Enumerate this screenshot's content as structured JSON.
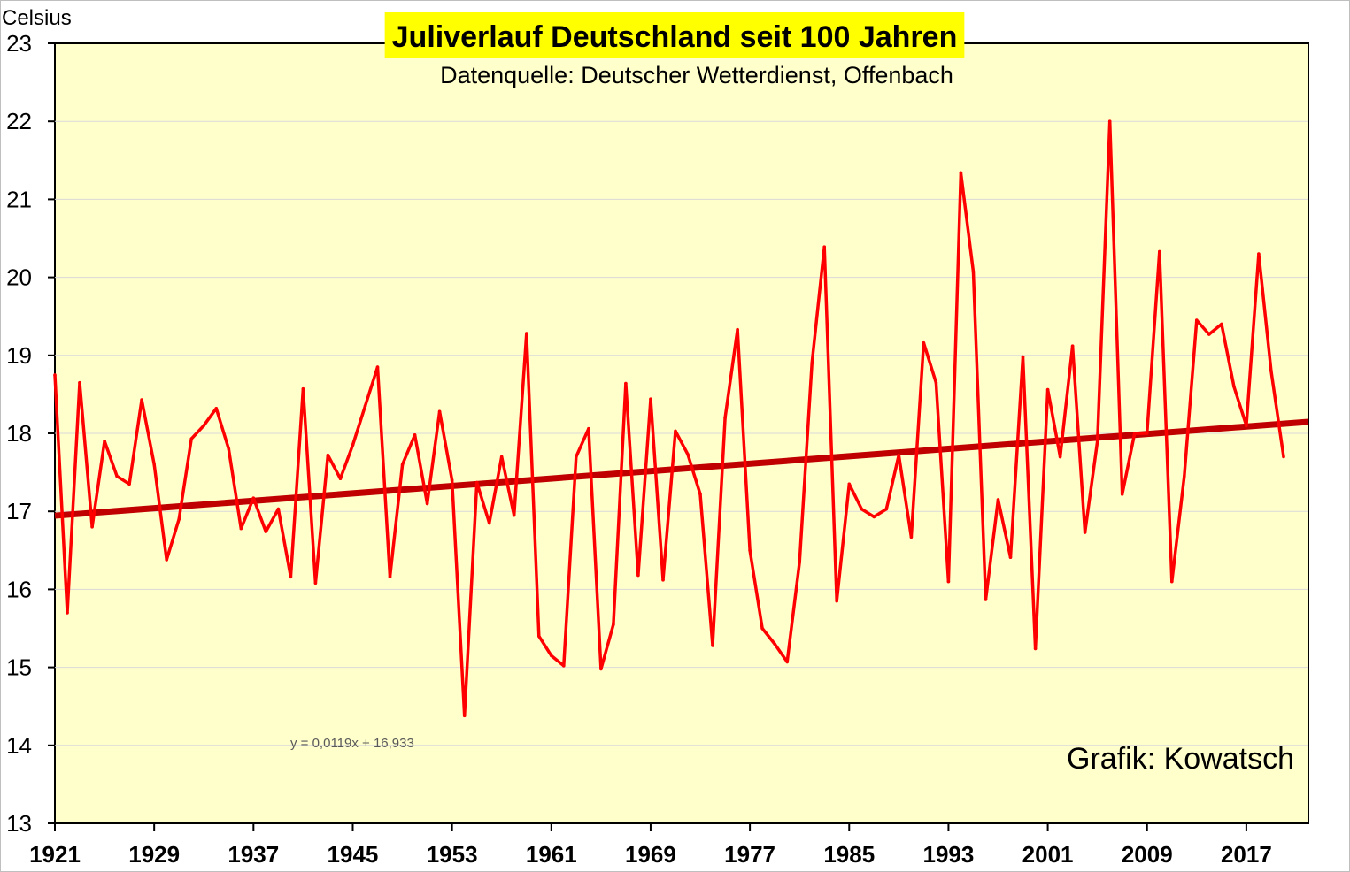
{
  "chart_data": {
    "type": "line",
    "title": "Juliverlauf Deutschland seit 100 Jahren",
    "subtitle": "Datenquelle: Deutscher Wetterdienst, Offenbach",
    "ylabel": "Celsius",
    "credit": "Grafik: Kowatsch",
    "trend_equation": "y = 0,0119x + 16,933",
    "trend": {
      "slope": 0.0119,
      "intercept": 16.933
    },
    "ylim": [
      13,
      23
    ],
    "yticks": [
      "13",
      "14",
      "15",
      "16",
      "17",
      "18",
      "19",
      "20",
      "21",
      "22",
      "23"
    ],
    "xlim": [
      1921,
      2022
    ],
    "xticks": [
      "1921",
      "1929",
      "1937",
      "1945",
      "1953",
      "1961",
      "1969",
      "1977",
      "1985",
      "1993",
      "2001",
      "2009",
      "2017"
    ],
    "grid": true,
    "colors": {
      "series": "#ff0000",
      "trend": "#c00000",
      "plot_background": "#ffffcc",
      "title_background": "#ffff00"
    },
    "series": [
      {
        "x": [
          1921,
          1922,
          1923,
          1924,
          1925,
          1926,
          1927,
          1928,
          1929,
          1930,
          1931,
          1932,
          1933,
          1934,
          1935,
          1936,
          1937,
          1938,
          1939,
          1940,
          1941,
          1942,
          1943,
          1944,
          1945,
          1946,
          1947,
          1948,
          1949,
          1950,
          1951,
          1952,
          1953,
          1954,
          1955,
          1956,
          1957,
          1958,
          1959,
          1960,
          1961,
          1962,
          1963,
          1964,
          1965,
          1966,
          1967,
          1968,
          1969,
          1970,
          1971,
          1972,
          1973,
          1974,
          1975,
          1976,
          1977,
          1978,
          1979,
          1980,
          1981,
          1982,
          1983,
          1984,
          1985,
          1986,
          1987,
          1988,
          1989,
          1990,
          1991,
          1992,
          1993,
          1994,
          1995,
          1996,
          1997,
          1998,
          1999,
          2000,
          2001,
          2002,
          2003,
          2004,
          2005,
          2006,
          2007,
          2008,
          2009,
          2010,
          2011,
          2012,
          2013,
          2014,
          2015,
          2016,
          2017,
          2018,
          2019,
          2020
        ],
        "values": [
          18.75,
          15.7,
          18.65,
          16.8,
          17.9,
          17.45,
          17.35,
          18.43,
          17.6,
          16.38,
          16.9,
          17.93,
          18.1,
          18.32,
          17.8,
          16.78,
          17.17,
          16.74,
          17.03,
          16.16,
          18.57,
          16.08,
          17.72,
          17.42,
          17.85,
          18.35,
          18.85,
          16.16,
          17.6,
          17.98,
          17.1,
          18.28,
          17.4,
          14.38,
          17.37,
          16.85,
          17.7,
          16.95,
          19.28,
          15.4,
          15.15,
          15.02,
          17.7,
          18.06,
          14.98,
          15.55,
          18.64,
          16.18,
          18.44,
          16.12,
          18.03,
          17.73,
          17.22,
          15.28,
          18.2,
          19.33,
          16.5,
          15.5,
          15.3,
          15.07,
          16.35,
          18.9,
          20.39,
          15.85,
          17.35,
          17.03,
          16.93,
          17.03,
          17.72,
          16.67,
          19.16,
          18.65,
          16.1,
          21.34,
          20.07,
          15.87,
          17.15,
          16.41,
          18.98,
          15.24,
          18.56,
          17.7,
          19.12,
          16.73,
          17.9,
          22.0,
          17.22,
          18.0,
          18.0,
          20.33,
          16.1,
          17.45,
          19.45,
          19.27,
          19.4,
          18.6,
          18.1,
          20.3,
          18.8,
          17.7
        ]
      }
    ]
  }
}
